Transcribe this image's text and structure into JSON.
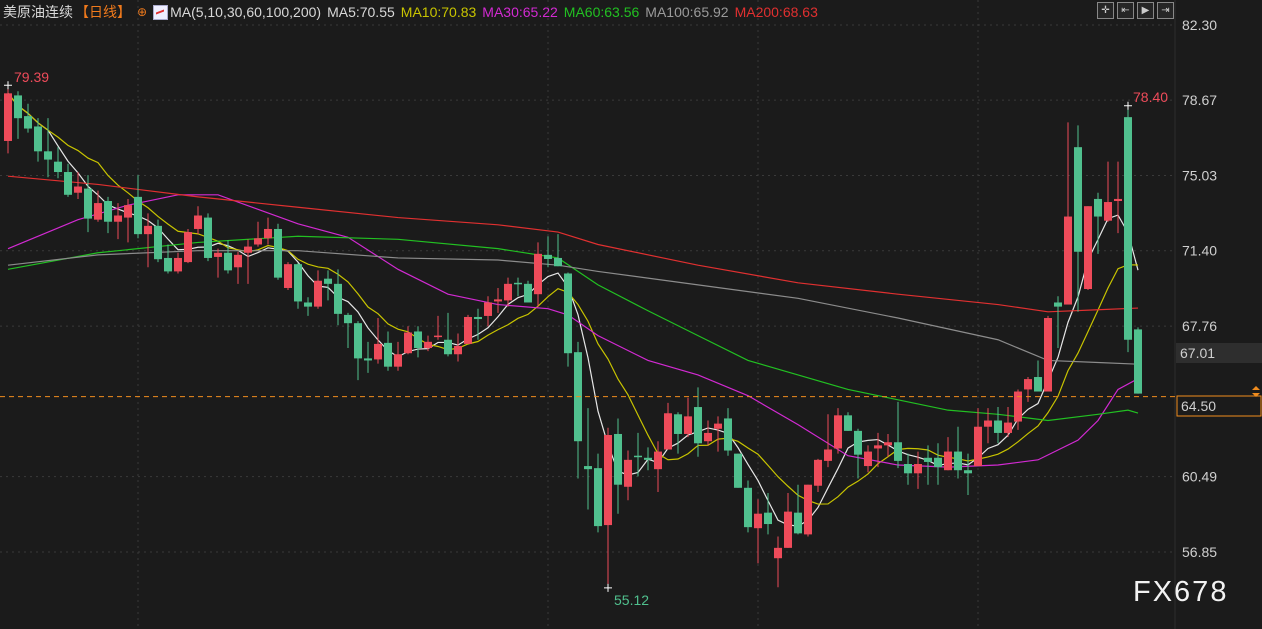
{
  "header": {
    "symbol": "美原油连续",
    "period": "【日线】",
    "plus_icon": "circle-plus-icon",
    "ma_icon": "indicator-chart-icon",
    "ma_params": "MA(5,10,30,60,100,200)",
    "ma_values": [
      {
        "label": "MA5:70.55",
        "color": "#d8d8d8"
      },
      {
        "label": "MA10:70.83",
        "color": "#c8c400"
      },
      {
        "label": "MA30:65.22",
        "color": "#d22ad2"
      },
      {
        "label": "MA60:63.56",
        "color": "#22c022"
      },
      {
        "label": "MA100:65.92",
        "color": "#9a9a9a"
      },
      {
        "label": "MA200:68.63",
        "color": "#e03030"
      }
    ]
  },
  "toolbar": [
    {
      "icon": "crosshair-icon",
      "glyph": "✛"
    },
    {
      "icon": "jump-start-icon",
      "glyph": "⇤"
    },
    {
      "icon": "play-icon",
      "glyph": "▶"
    },
    {
      "icon": "jump-end-icon",
      "glyph": "⇥"
    }
  ],
  "watermark": "FX678",
  "chart_data": {
    "type": "candlestick",
    "colors": {
      "up": "#ee4b5a",
      "down": "#50c08e",
      "background": "#1b1b1b",
      "last_price_line": "#f08c1e"
    },
    "y_ticks": [
      "82.30",
      "78.67",
      "75.03",
      "71.40",
      "67.76",
      "60.49",
      "56.85"
    ],
    "ylim": [
      56.85,
      82.3
    ],
    "grid": true,
    "annotations": {
      "max_left": "79.39",
      "min": "55.12",
      "max_right": "78.40",
      "marker_level": "67.01",
      "last_price": "64.50"
    },
    "ohlc": [
      [
        76.7,
        79.39,
        76.1,
        79.0
      ],
      [
        78.9,
        79.1,
        76.8,
        77.8
      ],
      [
        77.9,
        78.5,
        77.1,
        77.3
      ],
      [
        77.4,
        77.8,
        75.7,
        76.2
      ],
      [
        76.2,
        77.8,
        74.95,
        75.8
      ],
      [
        75.7,
        76.4,
        74.9,
        75.2
      ],
      [
        75.2,
        75.6,
        74.0,
        74.1
      ],
      [
        74.2,
        75.2,
        73.9,
        74.5
      ],
      [
        74.4,
        75.05,
        72.3,
        72.95
      ],
      [
        72.9,
        74.3,
        72.8,
        73.7
      ],
      [
        73.8,
        74.0,
        72.25,
        72.8
      ],
      [
        72.8,
        73.7,
        71.96,
        73.1
      ],
      [
        73.0,
        73.9,
        71.8,
        73.6
      ],
      [
        74.0,
        75.05,
        72.0,
        72.2
      ],
      [
        72.2,
        73.2,
        70.6,
        72.6
      ],
      [
        72.6,
        72.9,
        70.85,
        70.99
      ],
      [
        71.05,
        71.7,
        70.3,
        70.4
      ],
      [
        70.4,
        71.3,
        70.3,
        71.05
      ],
      [
        70.85,
        72.45,
        70.8,
        72.3
      ],
      [
        72.45,
        73.55,
        72.2,
        73.1
      ],
      [
        73.0,
        73.2,
        70.9,
        71.05
      ],
      [
        71.1,
        71.5,
        70.1,
        71.3
      ],
      [
        71.3,
        71.9,
        70.3,
        70.45
      ],
      [
        70.6,
        71.35,
        69.8,
        71.2
      ],
      [
        71.3,
        71.95,
        69.8,
        71.6
      ],
      [
        71.7,
        72.8,
        71.6,
        72.0
      ],
      [
        72.0,
        73.0,
        71.7,
        72.45
      ],
      [
        72.45,
        72.7,
        70.0,
        70.1
      ],
      [
        69.6,
        70.85,
        69.5,
        70.75
      ],
      [
        70.75,
        70.8,
        68.6,
        68.95
      ],
      [
        68.9,
        69.15,
        68.25,
        68.7
      ],
      [
        68.7,
        70.45,
        68.6,
        69.95
      ],
      [
        70.05,
        70.45,
        69.0,
        69.8
      ],
      [
        69.8,
        70.5,
        67.8,
        68.35
      ],
      [
        68.3,
        68.4,
        66.7,
        67.9
      ],
      [
        67.9,
        68.0,
        65.15,
        66.2
      ],
      [
        66.2,
        67.0,
        65.5,
        66.1
      ],
      [
        66.15,
        68.15,
        65.95,
        66.9
      ],
      [
        66.95,
        67.5,
        65.6,
        65.8
      ],
      [
        65.8,
        67.0,
        65.6,
        66.4
      ],
      [
        66.45,
        67.75,
        66.4,
        67.45
      ],
      [
        67.5,
        67.75,
        66.25,
        66.7
      ],
      [
        66.7,
        67.3,
        66.55,
        67.0
      ],
      [
        67.25,
        68.25,
        67.1,
        67.3
      ],
      [
        67.1,
        68.4,
        66.3,
        66.4
      ],
      [
        66.4,
        67.4,
        66.05,
        66.8
      ],
      [
        66.9,
        68.3,
        66.9,
        68.2
      ],
      [
        68.2,
        68.6,
        67.1,
        68.1
      ],
      [
        68.25,
        69.2,
        67.75,
        68.9
      ],
      [
        68.95,
        69.6,
        68.4,
        69.05
      ],
      [
        69.0,
        70.1,
        68.7,
        69.8
      ],
      [
        69.85,
        70.1,
        69.2,
        69.8
      ],
      [
        69.8,
        69.95,
        68.9,
        68.9
      ],
      [
        69.3,
        71.8,
        68.7,
        71.25
      ],
      [
        71.2,
        72.1,
        70.6,
        71.0
      ],
      [
        71.05,
        72.2,
        70.65,
        70.65
      ],
      [
        70.3,
        70.35,
        65.8,
        66.45
      ],
      [
        66.5,
        67.0,
        60.4,
        62.2
      ],
      [
        61.0,
        63.8,
        58.9,
        60.85
      ],
      [
        60.9,
        61.6,
        57.8,
        58.1
      ],
      [
        58.15,
        62.85,
        55.12,
        62.5
      ],
      [
        62.55,
        63.3,
        58.7,
        60.1
      ],
      [
        60.0,
        61.75,
        59.35,
        61.3
      ],
      [
        61.5,
        62.6,
        60.5,
        61.45
      ],
      [
        61.4,
        61.9,
        60.8,
        61.3
      ],
      [
        60.85,
        62.2,
        59.75,
        61.7
      ],
      [
        61.8,
        64.05,
        61.8,
        63.55
      ],
      [
        63.5,
        63.6,
        61.6,
        62.55
      ],
      [
        62.55,
        64.3,
        62.4,
        63.4
      ],
      [
        63.85,
        64.8,
        61.45,
        62.1
      ],
      [
        62.2,
        63.2,
        62.0,
        62.6
      ],
      [
        62.8,
        63.4,
        61.7,
        63.05
      ],
      [
        63.3,
        63.8,
        61.5,
        61.75
      ],
      [
        61.6,
        61.6,
        59.95,
        59.95
      ],
      [
        59.95,
        60.3,
        57.8,
        58.05
      ],
      [
        58.0,
        59.4,
        56.3,
        58.7
      ],
      [
        58.75,
        59.7,
        57.7,
        58.2
      ],
      [
        56.55,
        57.6,
        55.15,
        57.05
      ],
      [
        57.05,
        59.7,
        57.05,
        58.8
      ],
      [
        58.75,
        60.1,
        57.7,
        57.75
      ],
      [
        57.7,
        60.1,
        57.6,
        60.1
      ],
      [
        60.05,
        61.35,
        59.75,
        61.3
      ],
      [
        61.25,
        63.5,
        60.95,
        61.8
      ],
      [
        61.85,
        63.8,
        61.6,
        63.45
      ],
      [
        63.45,
        63.6,
        62.7,
        62.7
      ],
      [
        62.7,
        62.8,
        60.4,
        61.55
      ],
      [
        61.0,
        62.0,
        60.7,
        61.7
      ],
      [
        61.85,
        62.6,
        60.95,
        62.0
      ],
      [
        62.0,
        62.55,
        61.45,
        62.15
      ],
      [
        62.15,
        64.1,
        60.9,
        61.25
      ],
      [
        61.1,
        61.6,
        60.1,
        60.65
      ],
      [
        60.65,
        61.7,
        59.9,
        61.1
      ],
      [
        61.4,
        62.0,
        60.1,
        61.2
      ],
      [
        61.4,
        62.1,
        60.1,
        60.95
      ],
      [
        60.8,
        62.4,
        60.8,
        61.7
      ],
      [
        61.7,
        62.9,
        60.4,
        60.8
      ],
      [
        60.8,
        61.6,
        59.6,
        60.65
      ],
      [
        61.0,
        63.8,
        61.0,
        62.9
      ],
      [
        62.9,
        63.8,
        62.1,
        63.2
      ],
      [
        63.2,
        63.85,
        62.1,
        62.6
      ],
      [
        62.6,
        63.85,
        62.4,
        63.1
      ],
      [
        63.15,
        64.7,
        62.75,
        64.6
      ],
      [
        64.7,
        65.3,
        64.1,
        65.2
      ],
      [
        65.3,
        66.1,
        64.6,
        64.6
      ],
      [
        64.6,
        68.25,
        64.6,
        68.15
      ],
      [
        68.9,
        69.2,
        66.7,
        68.7
      ],
      [
        68.8,
        77.6,
        68.8,
        73.05
      ],
      [
        76.4,
        77.45,
        68.45,
        71.35
      ],
      [
        69.55,
        73.55,
        69.5,
        73.55
      ],
      [
        73.9,
        74.2,
        71.25,
        73.05
      ],
      [
        72.85,
        75.7,
        72.8,
        73.75
      ],
      [
        73.8,
        75.7,
        72.25,
        73.9
      ],
      [
        77.85,
        78.4,
        66.5,
        67.1
      ],
      [
        67.6,
        67.7,
        64.5,
        64.5
      ]
    ],
    "moving_averages": [
      {
        "name": "MA5",
        "period": 5,
        "color": "#e6e6e6"
      },
      {
        "name": "MA10",
        "period": 10,
        "color": "#c8c400"
      },
      {
        "name": "MA30",
        "color": "#d22ad2",
        "points": [
          [
            0,
            71.5
          ],
          [
            7,
            72.9
          ],
          [
            12,
            73.6
          ],
          [
            17,
            74.1
          ],
          [
            21,
            74.1
          ],
          [
            29,
            72.7
          ],
          [
            34,
            72.05
          ],
          [
            39,
            70.5
          ],
          [
            44,
            69.3
          ],
          [
            49,
            68.8
          ],
          [
            54,
            68.6
          ],
          [
            56,
            68.3
          ],
          [
            59,
            67.3
          ],
          [
            64,
            66.1
          ],
          [
            69,
            65.4
          ],
          [
            74,
            64.4
          ],
          [
            79,
            63.0
          ],
          [
            84,
            61.5
          ],
          [
            89,
            61.05
          ],
          [
            94,
            60.95
          ],
          [
            99,
            61.05
          ],
          [
            103,
            61.3
          ],
          [
            107,
            62.25
          ],
          [
            109,
            63.2
          ],
          [
            111,
            64.7
          ],
          [
            113,
            65.22
          ]
        ]
      },
      {
        "name": "MA60",
        "color": "#22c022",
        "points": [
          [
            0,
            70.5
          ],
          [
            9,
            71.3
          ],
          [
            19,
            71.8
          ],
          [
            29,
            72.1
          ],
          [
            39,
            71.95
          ],
          [
            49,
            71.5
          ],
          [
            55,
            71.05
          ],
          [
            59,
            69.75
          ],
          [
            64,
            68.5
          ],
          [
            69,
            67.3
          ],
          [
            74,
            66.1
          ],
          [
            79,
            65.4
          ],
          [
            84,
            64.7
          ],
          [
            89,
            64.2
          ],
          [
            94,
            63.7
          ],
          [
            99,
            63.5
          ],
          [
            104,
            63.2
          ],
          [
            109,
            63.5
          ],
          [
            112,
            63.7
          ],
          [
            113,
            63.56
          ]
        ]
      },
      {
        "name": "MA100",
        "color": "#8c8c8c",
        "points": [
          [
            0,
            70.7
          ],
          [
            9,
            71.2
          ],
          [
            19,
            71.4
          ],
          [
            29,
            71.4
          ],
          [
            39,
            71.05
          ],
          [
            49,
            70.95
          ],
          [
            55,
            70.7
          ],
          [
            59,
            70.4
          ],
          [
            69,
            69.75
          ],
          [
            79,
            69.1
          ],
          [
            89,
            68.15
          ],
          [
            99,
            67.1
          ],
          [
            104,
            66.1
          ],
          [
            109,
            66.0
          ],
          [
            113,
            65.92
          ]
        ]
      },
      {
        "name": "MA200",
        "color": "#e03030",
        "points": [
          [
            0,
            75.0
          ],
          [
            9,
            74.6
          ],
          [
            19,
            74.0
          ],
          [
            29,
            73.5
          ],
          [
            39,
            73.0
          ],
          [
            49,
            72.65
          ],
          [
            55,
            72.3
          ],
          [
            59,
            71.7
          ],
          [
            69,
            70.7
          ],
          [
            79,
            69.85
          ],
          [
            89,
            69.3
          ],
          [
            99,
            68.8
          ],
          [
            104,
            68.45
          ],
          [
            109,
            68.55
          ],
          [
            113,
            68.63
          ]
        ]
      }
    ]
  }
}
